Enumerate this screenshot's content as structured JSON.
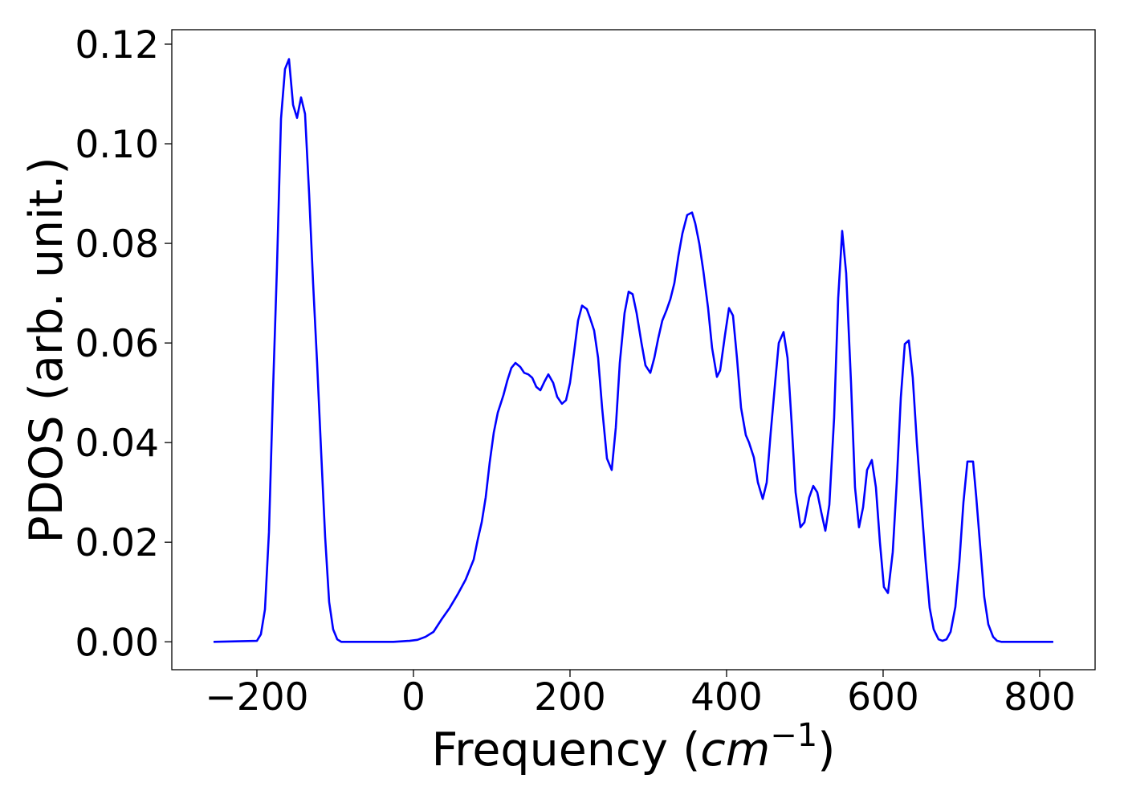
{
  "chart_data": {
    "type": "line",
    "ylabel": "PDOS (arb. unit.)",
    "xlabel": {
      "text": "Frequency (",
      "unit": "cm",
      "exponent": "−1",
      "close": ")"
    },
    "color": "#0000ff",
    "xlim": [
      -308.7,
      870.8
    ],
    "ylim": [
      -0.0056,
      0.1229
    ],
    "xticks": [
      {
        "value": -200,
        "label": "−200"
      },
      0,
      200,
      400,
      600,
      800
    ],
    "yticks": [
      {
        "value": 0,
        "label": "0.00"
      },
      {
        "value": 0.02,
        "label": "0.02"
      },
      {
        "value": 0.04,
        "label": "0.04"
      },
      {
        "value": 0.06,
        "label": "0.06"
      },
      {
        "value": 0.08,
        "label": "0.08"
      },
      {
        "value": 0.1,
        "label": "0.10"
      },
      {
        "value": 0.12,
        "label": "0.12"
      }
    ],
    "x": [
      -255.4,
      -200.0,
      -194.9,
      -189.7,
      -184.6,
      -179.5,
      -174.4,
      -169.2,
      -164.1,
      -159.0,
      -153.8,
      -148.7,
      -143.6,
      -138.5,
      -133.3,
      -128.2,
      -123.1,
      -117.9,
      -112.8,
      -107.7,
      -102.6,
      -97.4,
      -92.3,
      -25.6,
      -15.4,
      -5.1,
      5.1,
      15.4,
      25.6,
      35.9,
      46.2,
      56.4,
      66.7,
      76.9,
      82.1,
      87.2,
      92.3,
      97.4,
      102.6,
      107.7,
      114.9,
      120.0,
      125.1,
      130.3,
      136.4,
      141.5,
      146.7,
      151.8,
      156.9,
      162.1,
      167.2,
      172.3,
      178.5,
      183.6,
      189.7,
      194.9,
      200.0,
      205.1,
      210.3,
      215.4,
      221.5,
      225.6,
      230.8,
      235.9,
      241.0,
      247.2,
      253.3,
      258.5,
      263.6,
      269.7,
      274.9,
      280.0,
      285.1,
      291.3,
      296.4,
      302.6,
      307.7,
      312.8,
      317.9,
      323.1,
      328.2,
      333.3,
      338.5,
      343.6,
      349.7,
      355.9,
      360.0,
      365.1,
      370.3,
      376.4,
      381.5,
      387.7,
      391.8,
      397.9,
      403.1,
      408.2,
      413.3,
      418.5,
      424.6,
      428.7,
      434.9,
      440.0,
      446.2,
      451.3,
      456.4,
      462.6,
      466.7,
      472.8,
      477.9,
      483.1,
      488.2,
      494.4,
      499.5,
      505.6,
      510.8,
      515.9,
      521.0,
      526.2,
      531.3,
      537.4,
      542.6,
      547.7,
      552.8,
      559.0,
      564.1,
      569.2,
      574.4,
      579.5,
      585.6,
      590.8,
      595.9,
      601.0,
      606.2,
      612.3,
      617.4,
      622.6,
      627.7,
      632.8,
      637.9,
      643.1,
      649.2,
      654.4,
      659.5,
      664.6,
      670.8,
      675.9,
      681.0,
      686.2,
      692.3,
      697.4,
      702.6,
      707.7,
      714.9,
      719.0,
      724.1,
      729.2,
      734.4,
      740.5,
      745.6,
      750.8,
      817.4
    ],
    "values": [
      0,
      0.0002,
      0.0015,
      0.0065,
      0.022,
      0.05,
      0.075,
      0.105,
      0.115,
      0.117,
      0.1078,
      0.1052,
      0.1093,
      0.106,
      0.09,
      0.072,
      0.056,
      0.038,
      0.021,
      0.008,
      0.0025,
      0.0005,
      0,
      0,
      0.0001,
      0.0002,
      0.0004,
      0.001,
      0.002,
      0.0045,
      0.0068,
      0.0095,
      0.0125,
      0.0165,
      0.0205,
      0.024,
      0.029,
      0.036,
      0.042,
      0.046,
      0.0495,
      0.0525,
      0.055,
      0.056,
      0.0552,
      0.054,
      0.0537,
      0.053,
      0.0512,
      0.0505,
      0.0522,
      0.0537,
      0.052,
      0.0492,
      0.0478,
      0.0485,
      0.052,
      0.058,
      0.0645,
      0.0675,
      0.0668,
      0.065,
      0.0625,
      0.057,
      0.047,
      0.0368,
      0.0345,
      0.043,
      0.056,
      0.066,
      0.0703,
      0.0698,
      0.066,
      0.06,
      0.0555,
      0.054,
      0.057,
      0.061,
      0.0645,
      0.0665,
      0.0688,
      0.072,
      0.0775,
      0.082,
      0.0857,
      0.0862,
      0.084,
      0.08,
      0.0745,
      0.067,
      0.059,
      0.0532,
      0.0545,
      0.0615,
      0.067,
      0.0655,
      0.057,
      0.047,
      0.0415,
      0.04,
      0.037,
      0.032,
      0.0287,
      0.032,
      0.042,
      0.053,
      0.06,
      0.0622,
      0.057,
      0.044,
      0.03,
      0.023,
      0.024,
      0.029,
      0.0313,
      0.03,
      0.026,
      0.0223,
      0.0275,
      0.045,
      0.069,
      0.0825,
      0.074,
      0.052,
      0.031,
      0.023,
      0.027,
      0.0345,
      0.0365,
      0.031,
      0.02,
      0.011,
      0.0098,
      0.018,
      0.032,
      0.049,
      0.0598,
      0.0605,
      0.053,
      0.04,
      0.027,
      0.016,
      0.0068,
      0.0025,
      0.0005,
      0.0002,
      0.0005,
      0.002,
      0.007,
      0.016,
      0.028,
      0.0362,
      0.0362,
      0.029,
      0.019,
      0.009,
      0.0035,
      0.001,
      0.0002,
      0,
      0
    ]
  }
}
